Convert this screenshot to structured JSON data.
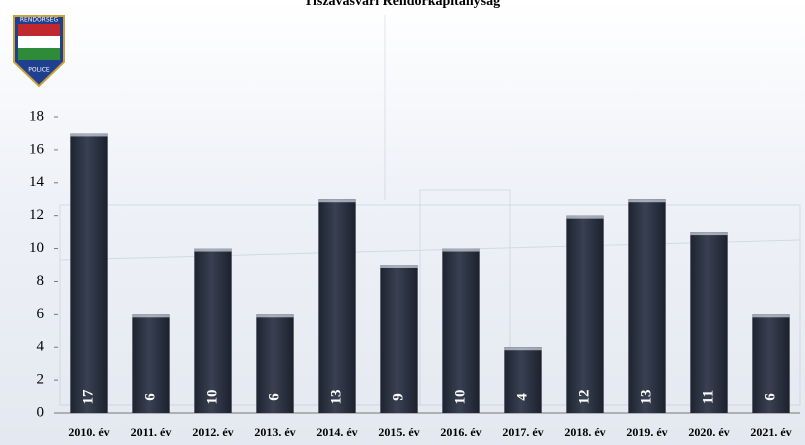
{
  "logo": {
    "top": "RENDŐRSÉG",
    "bottom": "POLICE"
  },
  "chart_data": {
    "type": "bar",
    "title": "Tiszavasvári Rendőrkapitányság",
    "categories": [
      "2010. év",
      "2011. év",
      "2012. év",
      "2013. év",
      "2014. év",
      "2015. év",
      "2016. év",
      "2017. év",
      "2018. év",
      "2019. év",
      "2020. év",
      "2021. év"
    ],
    "values": [
      17,
      6,
      10,
      6,
      13,
      9,
      10,
      4,
      12,
      13,
      11,
      6
    ],
    "color": "#2b3140",
    "ylim": [
      0,
      18
    ],
    "yticks": [
      0,
      2,
      4,
      6,
      8,
      10,
      12,
      14,
      16,
      18
    ],
    "grid": false
  }
}
